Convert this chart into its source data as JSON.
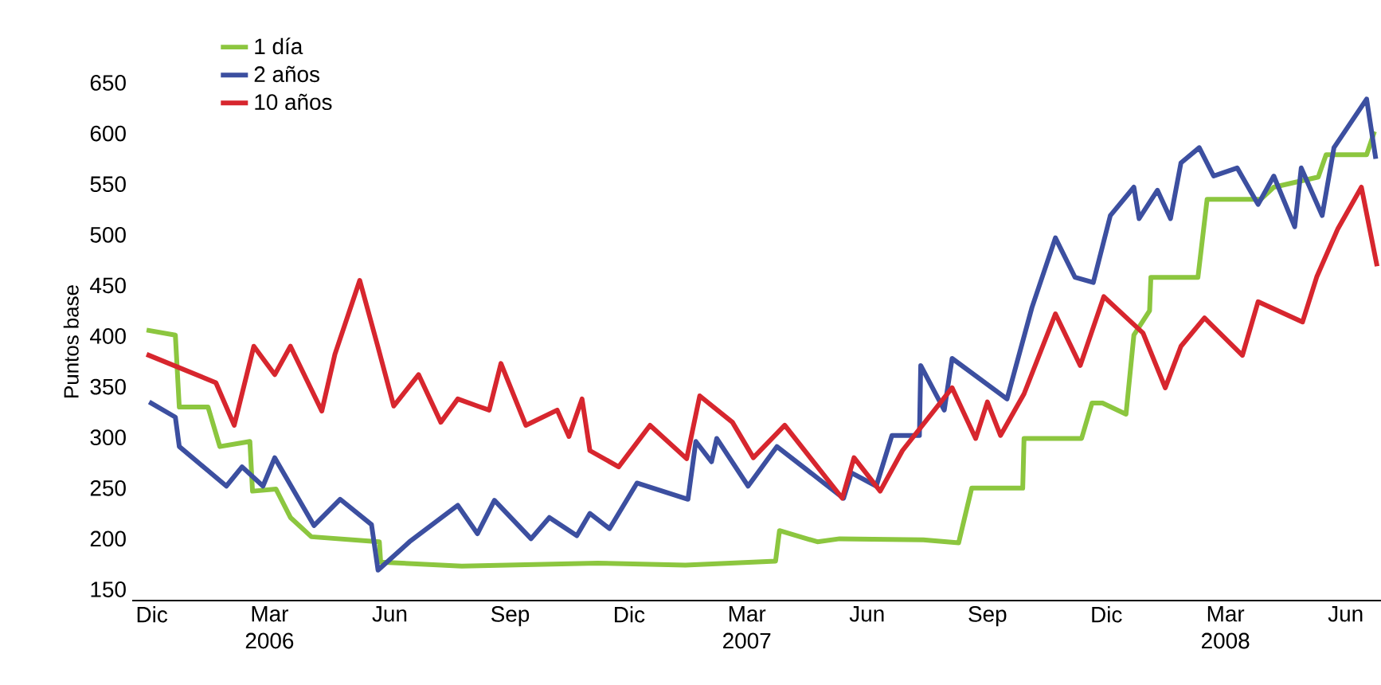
{
  "chart_data": {
    "type": "line",
    "ylabel": "Puntos base",
    "legend": "top left",
    "xlim": [
      "2005-11-16",
      "2008-06-28"
    ],
    "ylim": [
      139,
      650
    ],
    "xticks": [
      {
        "value": "2005-12-01",
        "label": "Dic"
      },
      {
        "value": "2006-03-01",
        "label": "Mar 2006"
      },
      {
        "value": "2006-06-01",
        "label": "Jun"
      },
      {
        "value": "2006-09-01",
        "label": "Sep"
      },
      {
        "value": "2006-12-01",
        "label": "Dic"
      },
      {
        "value": "2007-03-01",
        "label": "Mar 2007"
      },
      {
        "value": "2007-06-01",
        "label": "Jun"
      },
      {
        "value": "2007-09-01",
        "label": "Sep"
      },
      {
        "value": "2007-12-01",
        "label": "Dic"
      },
      {
        "value": "2008-03-01",
        "label": "Mar 2008"
      },
      {
        "value": "2008-06-01",
        "label": "Jun"
      }
    ],
    "yticks": [
      150,
      200,
      250,
      300,
      350,
      400,
      450,
      500,
      550,
      600,
      650
    ],
    "series": [
      {
        "name": "1 día",
        "color": "#8cc63f",
        "x": [
          "2005-11-27",
          "2005-12-19",
          "2005-12-22",
          "2006-01-13",
          "2006-01-22",
          "2006-02-14",
          "2006-02-16",
          "2006-03-06",
          "2006-03-17",
          "2006-04-02",
          "2006-05-24",
          "2006-05-25",
          "2006-07-26",
          "2006-11-07",
          "2007-01-13",
          "2007-03-23",
          "2007-03-26",
          "2007-04-24",
          "2007-05-11",
          "2007-07-14",
          "2007-08-10",
          "2007-08-20",
          "2007-09-28",
          "2007-09-29",
          "2007-11-12",
          "2007-11-20",
          "2007-11-28",
          "2007-12-16",
          "2007-12-22",
          "2008-01-03",
          "2008-01-04",
          "2008-02-09",
          "2008-02-16",
          "2008-03-28",
          "2008-04-07",
          "2008-05-11",
          "2008-05-17",
          "2008-06-17",
          "2008-06-23"
        ],
        "values": [
          406,
          401,
          330,
          330,
          291,
          296,
          247,
          249,
          221,
          202,
          197,
          177,
          173,
          176,
          174,
          178,
          208,
          197,
          200,
          199,
          196,
          250,
          250,
          299,
          299,
          334,
          334,
          323,
          401,
          425,
          458,
          458,
          535,
          535,
          547,
          557,
          579,
          579,
          602
        ]
      },
      {
        "name": "2 años",
        "color": "#3c4fa0",
        "x": [
          "2005-11-29",
          "2005-12-19",
          "2005-12-22",
          "2006-01-27",
          "2006-02-08",
          "2006-02-24",
          "2006-03-05",
          "2006-04-04",
          "2006-04-24",
          "2006-05-18",
          "2006-05-23",
          "2006-06-16",
          "2006-07-23",
          "2006-08-07",
          "2006-08-20",
          "2006-09-17",
          "2006-10-01",
          "2006-10-22",
          "2006-11-01",
          "2006-11-16",
          "2006-12-07",
          "2007-01-15",
          "2007-01-21",
          "2007-02-02",
          "2007-02-06",
          "2007-03-02",
          "2007-03-24",
          "2007-05-14",
          "2007-05-20",
          "2007-06-08",
          "2007-06-20",
          "2007-07-11",
          "2007-07-12",
          "2007-07-30",
          "2007-08-05",
          "2007-09-16",
          "2007-10-05",
          "2007-10-23",
          "2007-11-07",
          "2007-11-21",
          "2007-12-04",
          "2007-12-22",
          "2007-12-26",
          "2008-01-09",
          "2008-01-19",
          "2008-01-27",
          "2008-02-10",
          "2008-02-21",
          "2008-03-10",
          "2008-03-26",
          "2008-04-07",
          "2008-04-23",
          "2008-04-28",
          "2008-05-14",
          "2008-05-23",
          "2008-06-17",
          "2008-06-24"
        ],
        "values": [
          335,
          320,
          291,
          252,
          271,
          252,
          280,
          213,
          239,
          214,
          169,
          197,
          233,
          205,
          238,
          200,
          221,
          203,
          225,
          210,
          255,
          239,
          296,
          276,
          299,
          252,
          291,
          240,
          265,
          252,
          302,
          302,
          371,
          327,
          378,
          338,
          428,
          497,
          458,
          453,
          519,
          547,
          516,
          544,
          516,
          571,
          586,
          558,
          566,
          530,
          558,
          508,
          566,
          519,
          586,
          634,
          575
        ]
      },
      {
        "name": "10 años",
        "color": "#d7262e",
        "x": [
          "2005-11-27",
          "2006-01-19",
          "2006-02-02",
          "2006-02-17",
          "2006-03-05",
          "2006-03-17",
          "2006-04-10",
          "2006-04-20",
          "2006-05-09",
          "2006-05-23",
          "2006-06-04",
          "2006-06-23",
          "2006-07-10",
          "2006-07-23",
          "2006-08-07",
          "2006-08-16",
          "2006-08-25",
          "2006-09-13",
          "2006-10-07",
          "2006-10-16",
          "2006-10-26",
          "2006-11-01",
          "2006-11-23",
          "2006-12-17",
          "2007-01-14",
          "2007-01-24",
          "2007-02-18",
          "2007-03-06",
          "2007-03-30",
          "2007-05-13",
          "2007-05-22",
          "2007-06-11",
          "2007-06-28",
          "2007-08-05",
          "2007-08-23",
          "2007-09-01",
          "2007-09-11",
          "2007-09-29",
          "2007-10-23",
          "2007-11-11",
          "2007-11-29",
          "2007-12-29",
          "2008-01-15",
          "2008-01-27",
          "2008-02-14",
          "2008-03-14",
          "2008-03-26",
          "2008-04-29",
          "2008-05-10",
          "2008-05-26",
          "2008-06-13",
          "2008-06-25"
        ],
        "values": [
          382,
          354,
          312,
          390,
          362,
          390,
          326,
          382,
          455,
          389,
          331,
          362,
          315,
          338,
          331,
          327,
          373,
          312,
          327,
          301,
          338,
          287,
          271,
          312,
          279,
          341,
          315,
          280,
          312,
          240,
          280,
          247,
          287,
          349,
          299,
          335,
          302,
          343,
          422,
          371,
          439,
          403,
          349,
          390,
          418,
          381,
          434,
          414,
          459,
          506,
          547,
          469
        ]
      }
    ]
  }
}
